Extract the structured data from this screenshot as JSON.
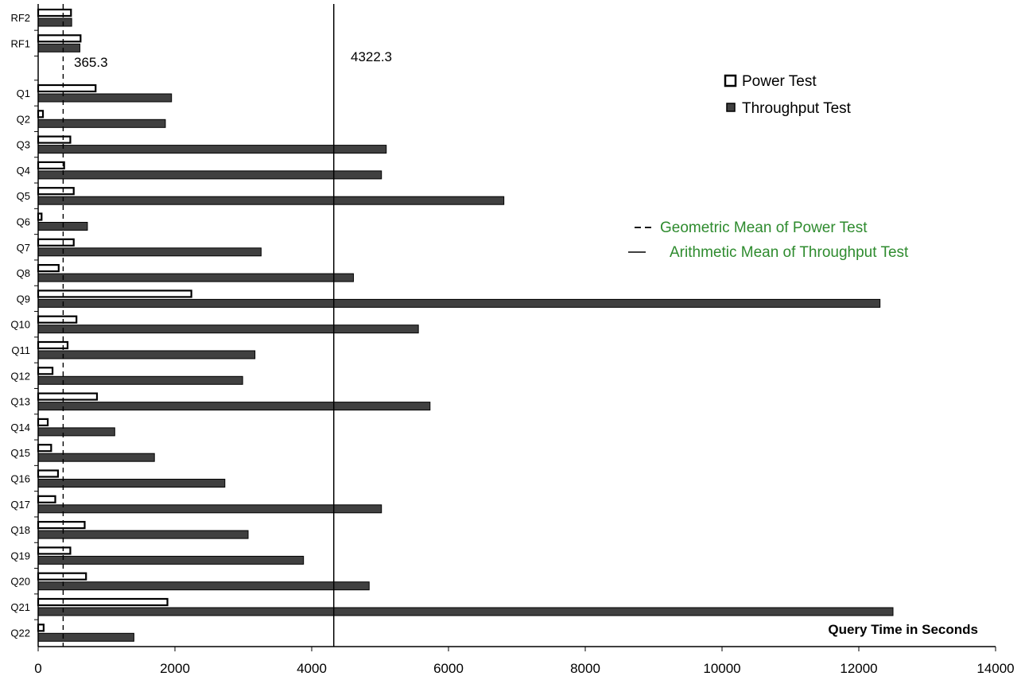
{
  "chart_data": {
    "type": "bar",
    "orientation": "horizontal",
    "categories": [
      "RF2",
      "RF1",
      "Q1",
      "Q2",
      "Q3",
      "Q4",
      "Q5",
      "Q6",
      "Q7",
      "Q8",
      "Q9",
      "Q10",
      "Q11",
      "Q12",
      "Q13",
      "Q14",
      "Q15",
      "Q16",
      "Q17",
      "Q18",
      "Q19",
      "Q20",
      "Q21",
      "Q22"
    ],
    "series": [
      {
        "name": "Power Test",
        "values": [
          480,
          620,
          840,
          70,
          470,
          380,
          520,
          50,
          520,
          300,
          2240,
          560,
          430,
          210,
          860,
          140,
          190,
          290,
          250,
          680,
          470,
          700,
          1890,
          80
        ],
        "color": "#ffffff",
        "stroke": "#000000"
      },
      {
        "name": "Throughput Test",
        "values": [
          490,
          610,
          1950,
          1860,
          5090,
          5020,
          6810,
          720,
          3260,
          4610,
          12310,
          5560,
          3170,
          2990,
          5730,
          1120,
          1700,
          2730,
          5020,
          3070,
          3880,
          4840,
          12500,
          1400
        ],
        "color": "#404040",
        "stroke": "#000000"
      }
    ],
    "reference_lines": [
      {
        "name": "Geometric Mean of Power Test",
        "value": 365.3,
        "label": "365.3",
        "style": "dashed"
      },
      {
        "name": "Arithmetic Mean of Throughput Test",
        "value": 4322.3,
        "label": "4322.3",
        "style": "solid"
      }
    ],
    "xlabel": "Query Time in Seconds",
    "xlim": [
      0,
      14000
    ],
    "xticks": [
      0,
      2000,
      4000,
      6000,
      8000,
      10000,
      12000,
      14000
    ],
    "grid": false,
    "legend_position": "right",
    "legend_text_color": "#000000",
    "reference_legend_text_color": "#2e8b2e"
  }
}
